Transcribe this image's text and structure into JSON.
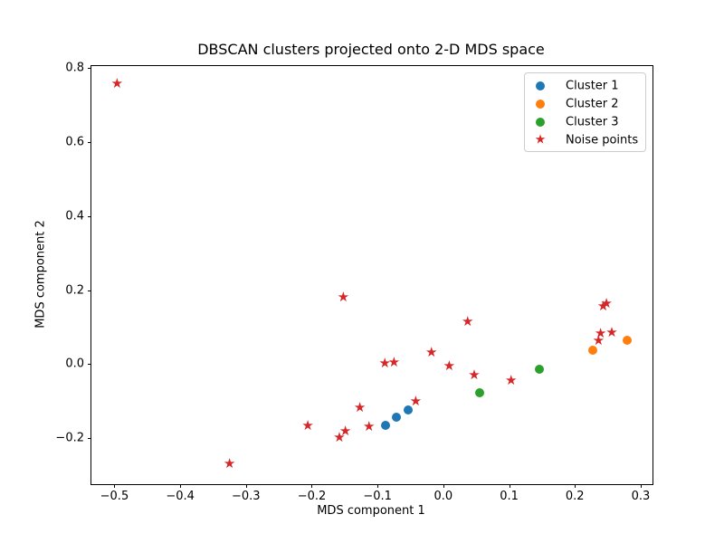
{
  "chart_data": {
    "type": "scatter",
    "title": "DBSCAN clusters projected onto 2-D MDS space",
    "xlabel": "MDS component 1",
    "ylabel": "MDS component 2",
    "xlim": [
      -0.535,
      0.318
    ],
    "ylim": [
      -0.325,
      0.806
    ],
    "grid": false,
    "background": "#ffffff",
    "xticks": {
      "values": [
        -0.5,
        -0.4,
        -0.3,
        -0.2,
        -0.1,
        0.0,
        0.1,
        0.2,
        0.3
      ],
      "labels": [
        "−0.5",
        "−0.4",
        "−0.3",
        "−0.2",
        "−0.1",
        "0.0",
        "0.1",
        "0.2",
        "0.3"
      ]
    },
    "yticks": {
      "values": [
        -0.2,
        0.0,
        0.2,
        0.4,
        0.6,
        0.8
      ],
      "labels": [
        "−0.2",
        "0.0",
        "0.2",
        "0.4",
        "0.6",
        "0.8"
      ]
    },
    "legend": {
      "position": "upper right",
      "entries": [
        "Cluster 1",
        "Cluster 2",
        "Cluster 3",
        "Noise points"
      ]
    },
    "series": [
      {
        "name": "Cluster 1",
        "marker": "circle",
        "color": "#1f77b4",
        "points": [
          [
            -0.088,
            -0.167
          ],
          [
            -0.071,
            -0.145
          ],
          [
            -0.053,
            -0.125
          ]
        ]
      },
      {
        "name": "Cluster 2",
        "marker": "circle",
        "color": "#ff7f0e",
        "points": [
          [
            0.227,
            0.038
          ],
          [
            0.279,
            0.064
          ]
        ]
      },
      {
        "name": "Cluster 3",
        "marker": "circle",
        "color": "#2ca02c",
        "points": [
          [
            0.055,
            -0.078
          ],
          [
            0.146,
            -0.013
          ]
        ]
      },
      {
        "name": "Noise points",
        "marker": "star",
        "color": "#d62728",
        "points": [
          [
            -0.496,
            0.757
          ],
          [
            -0.152,
            0.179
          ],
          [
            0.037,
            0.113
          ],
          [
            -0.018,
            0.031
          ],
          [
            -0.089,
            0.0
          ],
          [
            -0.075,
            0.004
          ],
          [
            0.009,
            -0.006
          ],
          [
            0.047,
            -0.031
          ],
          [
            0.103,
            -0.047
          ],
          [
            -0.042,
            -0.102
          ],
          [
            -0.127,
            -0.12
          ],
          [
            -0.113,
            -0.171
          ],
          [
            -0.206,
            -0.169
          ],
          [
            -0.149,
            -0.182
          ],
          [
            -0.158,
            -0.2
          ],
          [
            -0.325,
            -0.271
          ],
          [
            0.236,
            0.061
          ],
          [
            0.239,
            0.082
          ],
          [
            0.256,
            0.083
          ],
          [
            0.243,
            0.156
          ],
          [
            0.248,
            0.161
          ]
        ]
      }
    ]
  }
}
